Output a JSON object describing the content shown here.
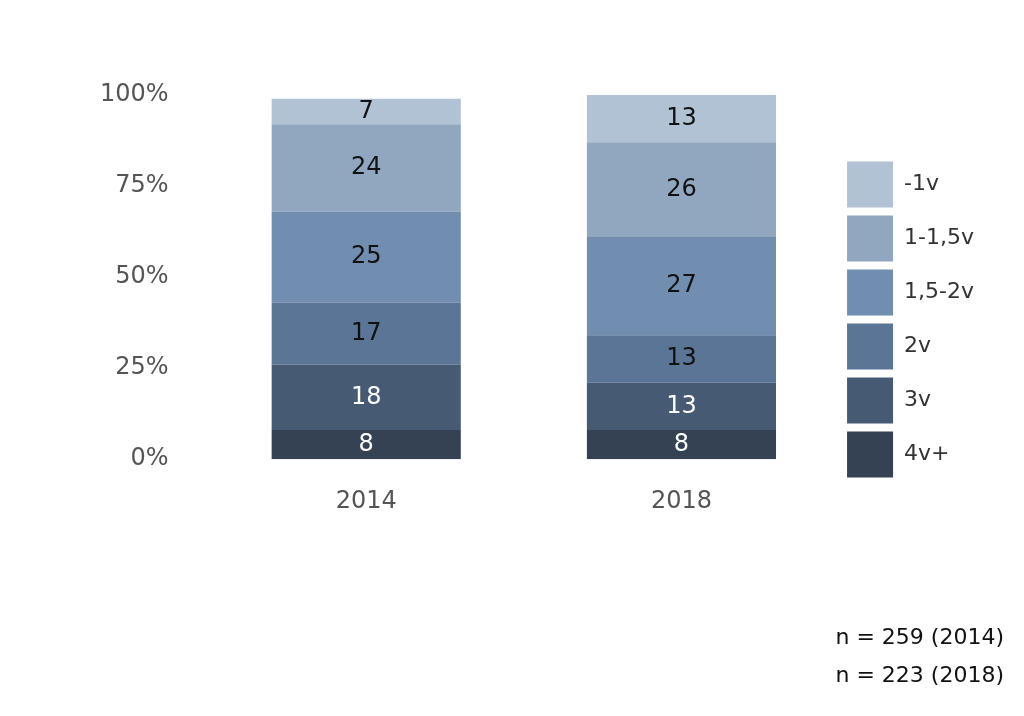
{
  "chart_data": {
    "type": "bar",
    "stacked": true,
    "data_labels": true,
    "grid": false,
    "legend": "right",
    "categories": [
      "2014",
      "2018"
    ],
    "series": [
      {
        "name": "4v+",
        "color": "#344253",
        "values": [
          8,
          8
        ]
      },
      {
        "name": "3v",
        "color": "#475a73",
        "values": [
          18,
          13
        ]
      },
      {
        "name": "2v",
        "color": "#5a7596",
        "values": [
          17,
          13
        ]
      },
      {
        "name": "1,5-2v",
        "color": "#718daf",
        "values": [
          25,
          27
        ]
      },
      {
        "name": "1-1,5v",
        "color": "#91a7c0",
        "values": [
          24,
          26
        ]
      },
      {
        "name": "-1v",
        "color": "#b0c2d4",
        "values": [
          7,
          13
        ]
      }
    ],
    "ylim": [
      0,
      100
    ],
    "yticks": [
      {
        "value": 0,
        "label": "0%"
      },
      {
        "value": 25,
        "label": "25%"
      },
      {
        "value": 50,
        "label": "50%"
      },
      {
        "value": 75,
        "label": "75%"
      },
      {
        "value": 100,
        "label": "100%"
      }
    ],
    "annotations": [
      "n = 259 (2014)",
      "n = 223 (2018)"
    ]
  }
}
